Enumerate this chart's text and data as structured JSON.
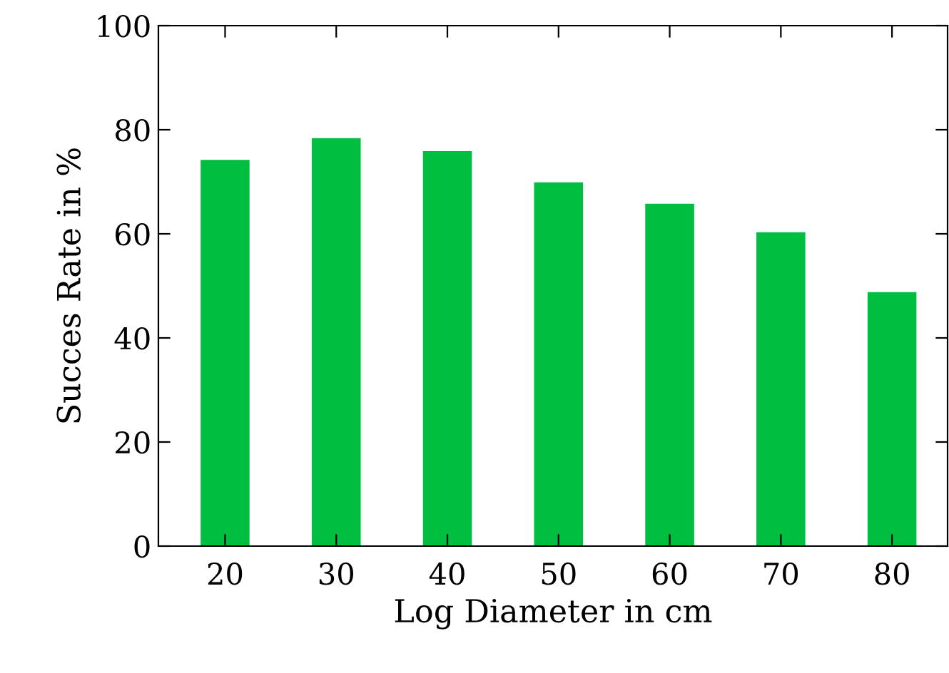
{
  "chart_data": {
    "type": "bar",
    "xlabel": "Log Diameter in cm",
    "ylabel": "Succes Rate in %",
    "x": [
      20,
      30,
      40,
      50,
      60,
      70,
      80
    ],
    "series": [
      {
        "color": "#00bf40",
        "values": [
          74.2,
          78.4,
          75.9,
          69.9,
          65.8,
          60.3,
          48.8
        ]
      }
    ],
    "xlim": [
      14,
      85
    ],
    "xticks": [
      20,
      30,
      40,
      50,
      60,
      70,
      80
    ],
    "ylim": [
      0,
      100
    ],
    "yticks": [
      0,
      20,
      40,
      60,
      80,
      100
    ],
    "grid": false,
    "legend": false
  }
}
